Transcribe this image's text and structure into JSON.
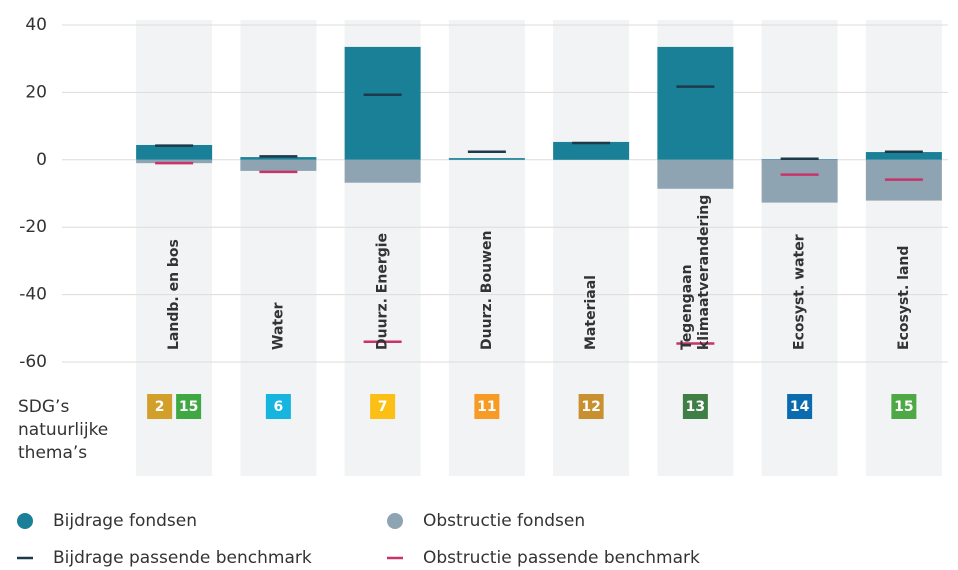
{
  "chart_data": {
    "type": "bar",
    "categories": [
      [
        "Landb. en bos"
      ],
      [
        "Water"
      ],
      [
        "Duurz. Energie"
      ],
      [
        "Duurz. Bouwen"
      ],
      [
        "Materiaal"
      ],
      [
        "Tegengaan",
        "klimaatverandering"
      ],
      [
        "Ecosyst. water"
      ],
      [
        "Ecosyst. land"
      ]
    ],
    "ylim": [
      -60,
      40
    ],
    "yticks": [
      -60,
      -40,
      -20,
      0,
      20,
      40
    ],
    "grid": true,
    "series": [
      {
        "name": "Bijdrage fondsen",
        "kind": "bar",
        "color": "#1a8097",
        "values": [
          4.4,
          0.8,
          33.5,
          0.5,
          5.3,
          33.5,
          0.2,
          2.3
        ]
      },
      {
        "name": "Obstructie fondsen",
        "kind": "bar",
        "color": "#8ea4b3",
        "values": [
          -1,
          -3.3,
          -6.8,
          0,
          0,
          -8.6,
          -12.7,
          -12.1
        ]
      },
      {
        "name": "Bijdrage passende benchmark",
        "kind": "marker",
        "color": "#1c3a4a",
        "values": [
          4.2,
          1,
          19.3,
          2.4,
          5,
          21.7,
          0.3,
          2.4
        ]
      },
      {
        "name": "Obstructie passende benchmark",
        "kind": "marker",
        "color": "#c8336a",
        "values": [
          -1,
          -3.6,
          -54,
          null,
          null,
          -54.5,
          -4.4,
          -5.9
        ]
      }
    ],
    "sdg_label": [
      "SDG’s",
      "natuurlijke",
      "thema’s"
    ],
    "sdg": [
      [
        {
          "label": "2",
          "color": "#d19f2a"
        },
        {
          "label": "15",
          "color": "#3fa843"
        }
      ],
      [
        {
          "label": "6",
          "color": "#15b5e0"
        }
      ],
      [
        {
          "label": "7",
          "color": "#fbbf16"
        }
      ],
      [
        {
          "label": "11",
          "color": "#f59b26"
        }
      ],
      [
        {
          "label": "12",
          "color": "#c8902f"
        }
      ],
      [
        {
          "label": "13",
          "color": "#3f7e44"
        }
      ],
      [
        {
          "label": "14",
          "color": "#0a6cae"
        }
      ],
      [
        {
          "label": "15",
          "color": "#4ea845"
        }
      ]
    ]
  }
}
